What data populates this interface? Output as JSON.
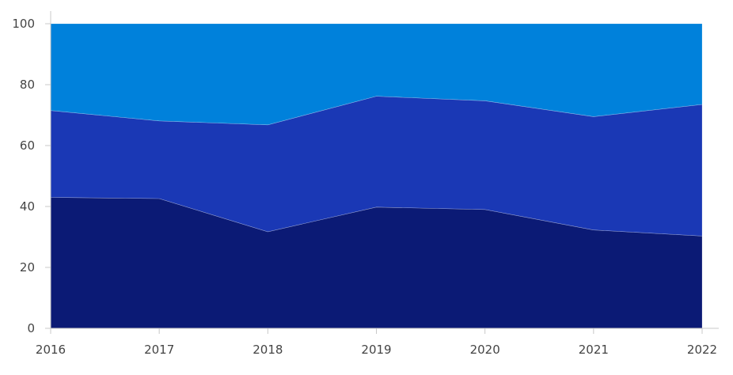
{
  "chart_data": {
    "type": "area",
    "stacked": true,
    "title": "",
    "xlabel": "",
    "ylabel": "",
    "x": [
      "2016",
      "2017",
      "2018",
      "2019",
      "2020",
      "2021",
      "2022"
    ],
    "ylim": [
      0,
      100
    ],
    "yticks": [
      0,
      20,
      40,
      60,
      80,
      100
    ],
    "grid": false,
    "legend": "none",
    "series": [
      {
        "values": [
          43,
          42.6,
          31.7,
          39.8,
          39,
          32.3,
          30.3
        ],
        "color": "#0b1a75"
      },
      {
        "values": [
          28.5,
          25.5,
          35.1,
          36.4,
          35.7,
          37.2,
          43.2
        ],
        "color": "#1a38b5"
      },
      {
        "values": [
          28.5,
          31.9,
          33.2,
          23.8,
          25.3,
          30.5,
          26.5
        ],
        "color": "#0081db"
      }
    ]
  }
}
